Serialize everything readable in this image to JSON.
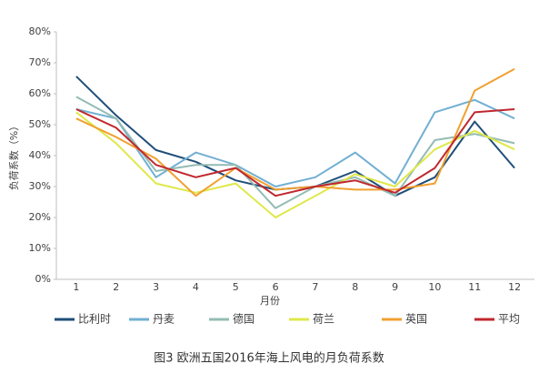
{
  "chart_data": {
    "type": "line",
    "caption": "图3 欧洲五国2016年海上风电的月负荷系数",
    "x_label": "月份",
    "y_label": "负荷系数（%）",
    "categories": [
      "1",
      "2",
      "3",
      "4",
      "5",
      "6",
      "7",
      "8",
      "9",
      "10",
      "11",
      "12"
    ],
    "ylim": [
      0,
      80
    ],
    "yticks": [
      {
        "value": 0,
        "label": "0%"
      },
      {
        "value": 10,
        "label": "10%"
      },
      {
        "value": 20,
        "label": "20%"
      },
      {
        "value": 30,
        "label": "30%"
      },
      {
        "value": 40,
        "label": "40%"
      },
      {
        "value": 50,
        "label": "50%"
      },
      {
        "value": 60,
        "label": "60%"
      },
      {
        "value": 70,
        "label": "70%"
      },
      {
        "value": 80,
        "label": "80%"
      }
    ],
    "series": [
      {
        "name": "比利时",
        "color": "#1f4e79",
        "values": [
          65.6,
          53,
          41.8,
          38,
          32,
          29,
          30,
          35,
          27,
          33,
          51,
          36
        ]
      },
      {
        "name": "丹麦",
        "color": "#72afd2",
        "values": [
          55,
          52,
          33,
          41,
          37,
          30,
          33,
          41,
          31,
          54,
          58,
          52
        ]
      },
      {
        "name": "德国",
        "color": "#93bcb3",
        "values": [
          59,
          52,
          35,
          37,
          37,
          23,
          30,
          33,
          27,
          45,
          47,
          44
        ]
      },
      {
        "name": "荷兰",
        "color": "#dfe84a",
        "values": [
          54,
          44,
          31,
          28,
          31,
          20,
          27,
          34,
          30,
          42,
          48,
          42
        ]
      },
      {
        "name": "英国",
        "color": "#f0a030",
        "values": [
          52,
          46,
          39,
          27,
          36,
          29,
          30,
          29,
          29,
          31,
          61,
          68
        ]
      },
      {
        "name": "平均",
        "color": "#c0272d",
        "values": [
          55,
          49,
          37,
          33,
          36,
          27,
          30,
          32,
          28,
          36,
          54,
          55
        ]
      }
    ]
  }
}
